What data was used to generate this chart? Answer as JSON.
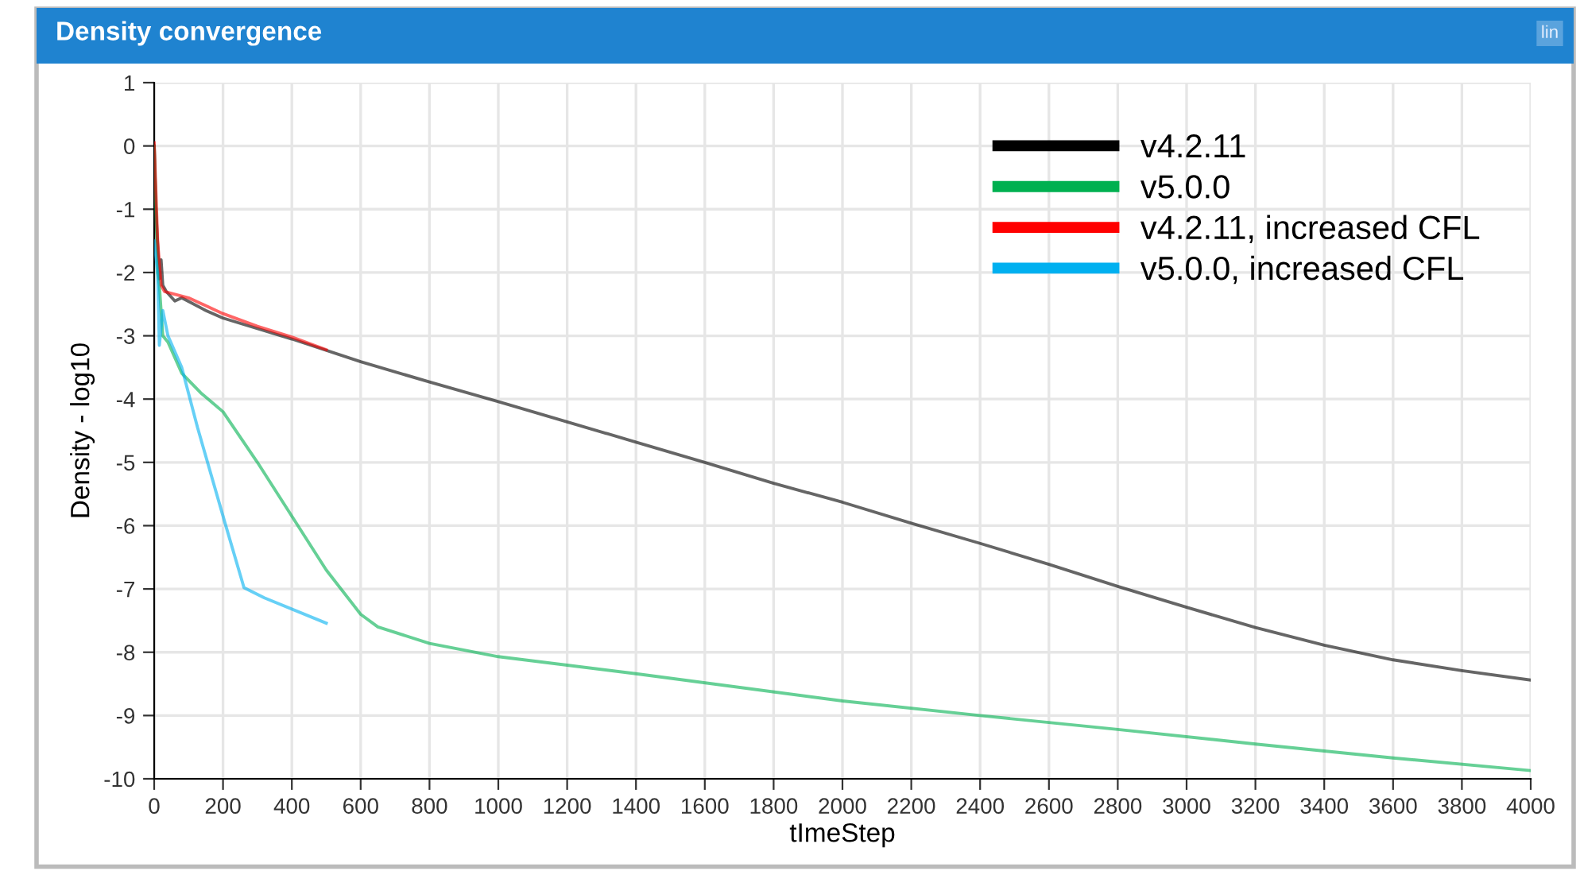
{
  "chart_data": {
    "type": "line",
    "title": "Density convergence",
    "xlabel": "tImeStep",
    "ylabel": "Density - log10",
    "annotations": [
      "lin"
    ],
    "xlim": [
      0,
      4000
    ],
    "ylim": [
      -10,
      1
    ],
    "xticks": [
      0,
      200,
      400,
      600,
      800,
      1000,
      1200,
      1400,
      1600,
      1800,
      2000,
      2200,
      2400,
      2600,
      2800,
      3000,
      3200,
      3400,
      3600,
      3800,
      4000
    ],
    "yticks": [
      1,
      0,
      -1,
      -2,
      -3,
      -4,
      -5,
      -6,
      -7,
      -8,
      -9,
      -10
    ],
    "grid": true,
    "legend": "top right",
    "line_style": "solid",
    "marker": "none",
    "series": [
      {
        "name": "v4.2.11",
        "color": "#000000",
        "x": [
          0,
          5,
          15,
          20,
          25,
          35,
          60,
          80,
          150,
          200,
          400,
          600,
          800,
          1000,
          1200,
          1400,
          1600,
          1800,
          2000,
          2200,
          2400,
          2600,
          2800,
          3000,
          3200,
          3400,
          3600,
          3800,
          4000
        ],
        "values": [
          0,
          -1,
          -2.1,
          -1.8,
          -2.2,
          -2.3,
          -2.45,
          -2.4,
          -2.6,
          -2.72,
          -3.05,
          -3.41,
          -3.73,
          -4.04,
          -4.36,
          -4.68,
          -5.0,
          -5.33,
          -5.63,
          -5.96,
          -6.28,
          -6.61,
          -6.96,
          -7.29,
          -7.61,
          -7.89,
          -8.12,
          -8.29,
          -8.44
        ]
      },
      {
        "name": "v5.0.0",
        "color": "#00b050",
        "x": [
          0,
          10,
          15,
          25,
          40,
          80,
          135,
          200,
          300,
          400,
          500,
          600,
          650,
          800,
          1000,
          1400,
          2000,
          2400,
          2800,
          3200,
          3600,
          4000
        ],
        "values": [
          0,
          -2.0,
          -2.2,
          -3.0,
          -3.1,
          -3.59,
          -3.9,
          -4.2,
          -5.0,
          -5.85,
          -6.7,
          -7.4,
          -7.6,
          -7.86,
          -8.07,
          -8.34,
          -8.77,
          -9.0,
          -9.22,
          -9.45,
          -9.67,
          -9.87
        ]
      },
      {
        "name": "v4.2.11, increased CFL",
        "color": "#ff0000",
        "x": [
          0,
          10,
          20,
          30,
          100,
          200,
          300,
          400,
          500
        ],
        "values": [
          0.05,
          -1.5,
          -2.2,
          -2.3,
          -2.4,
          -2.65,
          -2.85,
          -3.02,
          -3.22
        ]
      },
      {
        "name": "v5.0.0, increased CFL",
        "color": "#00b0f0",
        "x": [
          0,
          10,
          15,
          25,
          40,
          80,
          126,
          207,
          261,
          320,
          500
        ],
        "values": [
          -1.5,
          -2.0,
          -3.15,
          -2.6,
          -3.0,
          -3.5,
          -4.45,
          -5.98,
          -6.98,
          -7.14,
          -7.54
        ]
      }
    ]
  }
}
